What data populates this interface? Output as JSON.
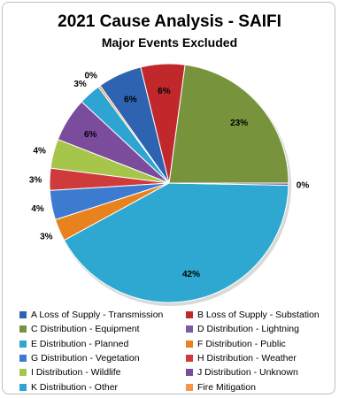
{
  "chart_data": {
    "type": "pie",
    "title": "2021 Cause Analysis - SAIFI",
    "subtitle": "Major Events Excluded",
    "start_angle_deg": 0,
    "direction": "counterclockwise",
    "slices": [
      {
        "label": "C Distribution - Equipment",
        "value": 23,
        "display": "23%",
        "color": "#77933C"
      },
      {
        "label": "B Loss of Supply - Substation",
        "value": 6,
        "display": "6%",
        "color": "#C0282C"
      },
      {
        "label": "A Loss of Supply - Transmission",
        "value": 6,
        "display": "6%",
        "color": "#2E63B1"
      },
      {
        "label": "Fire Mitigation",
        "value": 0.3,
        "display": "0%",
        "color": "#F79646"
      },
      {
        "label": "K Distribution - Other",
        "value": 3,
        "display": "3%",
        "color": "#2EA4D3"
      },
      {
        "label": "J Distribution - Unknown",
        "value": 6,
        "display": "6%",
        "color": "#7B4B9C"
      },
      {
        "label": "I Distribution - Wildlife",
        "value": 4,
        "display": "4%",
        "color": "#A5C64A"
      },
      {
        "label": "H Distribution - Weather",
        "value": 3,
        "display": "3%",
        "color": "#CF3A3A"
      },
      {
        "label": "G Distribution - Vegetation",
        "value": 4,
        "display": "4%",
        "color": "#3D7BD0"
      },
      {
        "label": "F Distribution - Public",
        "value": 3,
        "display": "3%",
        "color": "#E8821E"
      },
      {
        "label": "E Distribution - Planned",
        "value": 42,
        "display": "42%",
        "color": "#2EA8D0"
      },
      {
        "label": "D Distribution - Lightning",
        "value": 0.3,
        "display": "0%",
        "color": "#7E5AA6"
      }
    ],
    "legend": {
      "position": "bottom",
      "columns": 2,
      "entries": [
        {
          "label": "A Loss of Supply - Transmission",
          "color": "#2E63B1"
        },
        {
          "label": "B Loss of Supply - Substation",
          "color": "#C0282C"
        },
        {
          "label": "C Distribution - Equipment",
          "color": "#77933C"
        },
        {
          "label": "D Distribution - Lightning",
          "color": "#7E5AA6"
        },
        {
          "label": "E Distribution - Planned",
          "color": "#2EA8D0"
        },
        {
          "label": "F Distribution - Public",
          "color": "#E8821E"
        },
        {
          "label": "G Distribution - Vegetation",
          "color": "#3D7BD0"
        },
        {
          "label": "H Distribution - Weather",
          "color": "#CF3A3A"
        },
        {
          "label": "I Distribution - Wildlife",
          "color": "#A5C64A"
        },
        {
          "label": "J Distribution - Unknown",
          "color": "#7B4B9C"
        },
        {
          "label": "K Distribution - Other",
          "color": "#2EA4D3"
        },
        {
          "label": "Fire Mitigation",
          "color": "#F79646"
        }
      ]
    }
  }
}
